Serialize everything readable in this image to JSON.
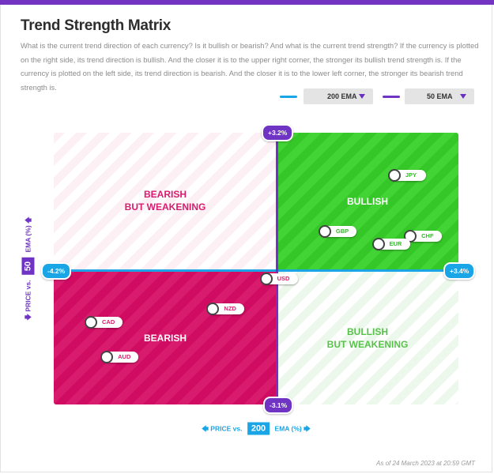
{
  "title": "Trend Strength Matrix",
  "description": "What is the current trend direction of each currency? Is it bullish or bearish? And what is the current trend strength? If the currency is plotted on the right side, its trend direction is bullish. And the closer it is to the upper right corner, the stronger its bullish trend strength is. If the currency is plotted on the left side, its trend direction is bearish. And the closer it is to the lower left corner, the stronger its bearish trend strength is.",
  "selectors": {
    "ema200": {
      "label": "200 EMA",
      "color": "#1aa5e6"
    },
    "ema50": {
      "label": "50 EMA",
      "color": "#6f34c3"
    }
  },
  "quadrants": {
    "top_left": {
      "line1": "BEARISH",
      "line2": "BUT WEAKENING",
      "color": "#d81b6d"
    },
    "top_right": {
      "line1": "BULLISH",
      "line2": "",
      "color": "#ffffff"
    },
    "bottom_left": {
      "line1": "BEARISH",
      "line2": "",
      "color": "#ffffff"
    },
    "bottom_right": {
      "line1": "BULLISH",
      "line2": "BUT WEAKENING",
      "color": "#57c24a"
    }
  },
  "axes": {
    "y_prefix": "PRICE vs.",
    "y_period": "50",
    "y_suffix": "EMA (%)",
    "x_prefix": "PRICE vs.",
    "x_period": "200",
    "x_suffix": "EMA (%)",
    "y_max_label": "+3.2%",
    "y_min_label": "-3.1%",
    "x_min_label": "-4.2%",
    "x_max_label": "+3.4%"
  },
  "footer": "As of 24 March 2023 at 20:59 GMT",
  "chart_data": {
    "type": "scatter",
    "title": "Trend Strength Matrix",
    "xlabel": "PRICE vs. 200 EMA (%)",
    "ylabel": "PRICE vs. 50 EMA (%)",
    "xlim": [
      -4.2,
      3.4
    ],
    "ylim": [
      -3.1,
      3.2
    ],
    "points": [
      {
        "label": "JPY",
        "x": 2.2,
        "y": 2.2,
        "color": "#2fbf22"
      },
      {
        "label": "GBP",
        "x": 0.9,
        "y": 0.9,
        "color": "#2fbf22"
      },
      {
        "label": "CHF",
        "x": 2.5,
        "y": 0.8,
        "color": "#2fbf22"
      },
      {
        "label": "EUR",
        "x": 1.9,
        "y": 0.6,
        "color": "#2fbf22"
      },
      {
        "label": "USD",
        "x": -0.2,
        "y": -0.2,
        "color": "#d81b6d"
      },
      {
        "label": "NZD",
        "x": -1.2,
        "y": -0.9,
        "color": "#d81b6d"
      },
      {
        "label": "CAD",
        "x": -3.5,
        "y": -1.2,
        "color": "#d81b6d"
      },
      {
        "label": "AUD",
        "x": -3.2,
        "y": -2.0,
        "color": "#d81b6d"
      }
    ]
  }
}
